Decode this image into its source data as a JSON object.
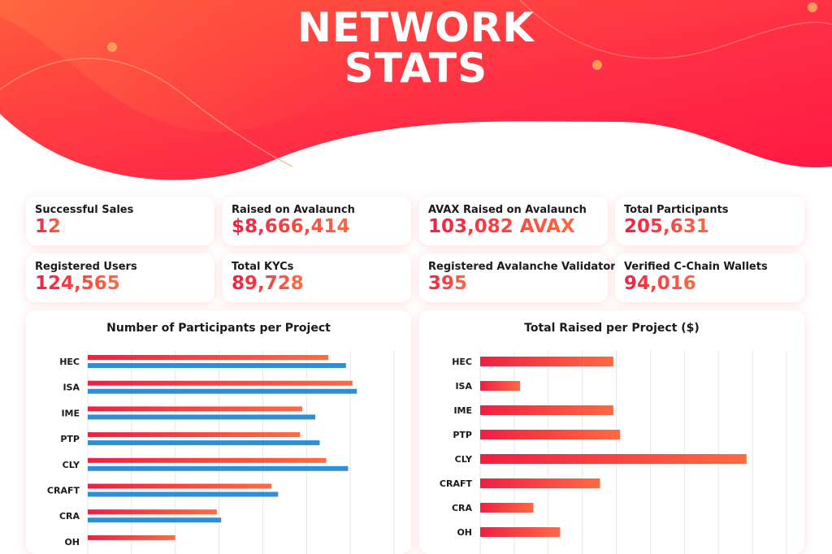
{
  "header": {
    "title_line1": "NETWORK",
    "title_line2": "STATS"
  },
  "colors": {
    "accent_red": "#ef1f43",
    "accent_orange": "#ff6a42",
    "series_blue": "#2e8fd8"
  },
  "stats": [
    {
      "label": "Successful Sales",
      "value": "12"
    },
    {
      "label": "Raised on Avalaunch",
      "value": "$8,666,414"
    },
    {
      "label": "AVAX Raised on Avalaunch",
      "value": "103,082 AVAX"
    },
    {
      "label": "Total Participants",
      "value": "205,631"
    },
    {
      "label": "Registered Users",
      "value": "124,565"
    },
    {
      "label": "Total KYCs",
      "value": "89,728"
    },
    {
      "label": "Registered Avalanche Validators",
      "value": "395"
    },
    {
      "label": "Verified C-Chain Wallets",
      "value": "94,016"
    }
  ],
  "chart_data": [
    {
      "type": "bar",
      "orientation": "horizontal",
      "title": "Number of Participants per Project",
      "categories": [
        "HEC",
        "ISA",
        "IME",
        "PTP",
        "CLY",
        "CRAFT",
        "CRA",
        "OH"
      ],
      "series": [
        {
          "color": "#ef1f43",
          "values": [
            5500,
            6050,
            4900,
            4850,
            5450,
            4200,
            2950,
            2000
          ]
        },
        {
          "color": "#2e8fd8",
          "values": [
            5900,
            6150,
            5200,
            5300,
            5950,
            4350,
            3050,
            null
          ]
        }
      ],
      "xlim": [
        0,
        7000
      ],
      "grid": true
    },
    {
      "type": "bar",
      "orientation": "horizontal",
      "title": "Total Raised per Project ($)",
      "categories": [
        "HEC",
        "ISA",
        "IME",
        "PTP",
        "CLY",
        "CRAFT",
        "CRA",
        "OH"
      ],
      "series": [
        {
          "color": "#ef1f43",
          "values": [
            500000,
            150000,
            500000,
            525000,
            1000000,
            450000,
            200000,
            300000
          ]
        }
      ],
      "xlim": [
        0,
        1150000
      ],
      "grid": true
    }
  ]
}
